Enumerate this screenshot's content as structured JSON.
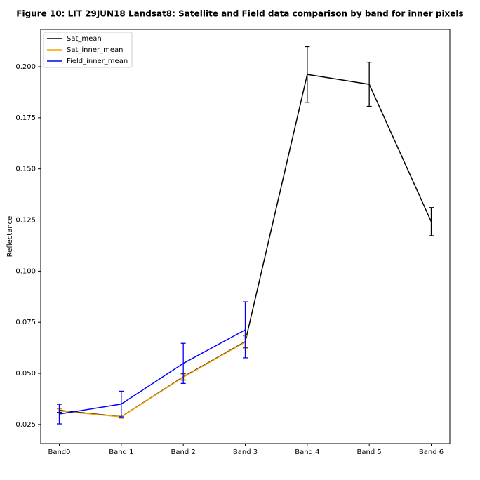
{
  "chart_data": {
    "type": "line",
    "title": "Figure 10: LIT 29JUN18  Landsat8: Satellite and Field data comparison by band for inner pixels",
    "ylabel": "Reflectance",
    "categories": [
      "Band0",
      "Band 1",
      "Band 2",
      "Band 3",
      "Band 4",
      "Band 5",
      "Band 6"
    ],
    "series": [
      {
        "name": "Sat_mean",
        "color": "#000000",
        "values": [
          0.0319,
          0.0288,
          0.0483,
          0.0655,
          0.1962,
          0.1914,
          0.1242
        ],
        "errors": [
          0.001,
          0.0007,
          0.0015,
          0.003,
          0.0136,
          0.0108,
          0.0069
        ]
      },
      {
        "name": "Sat_inner_mean",
        "color": "#f5a300",
        "values": [
          0.0316,
          0.0287,
          0.0481,
          0.0653,
          null,
          null,
          null
        ],
        "errors": [
          0.001,
          0.0007,
          0.0015,
          0.003,
          null,
          null,
          null
        ]
      },
      {
        "name": "Field_inner_mean",
        "color": "#0000ff",
        "values": [
          0.0301,
          0.035,
          0.0549,
          0.0713,
          null,
          null,
          null
        ],
        "errors": [
          0.0048,
          0.0063,
          0.0098,
          0.0137,
          null,
          null,
          null
        ]
      }
    ],
    "xlim": [
      -0.3,
      6.3
    ],
    "ylim": [
      0.0157,
      0.2182
    ],
    "yticks": [
      {
        "value": 0.025,
        "label": "0.025"
      },
      {
        "value": 0.05,
        "label": "0.050"
      },
      {
        "value": 0.075,
        "label": "0.075"
      },
      {
        "value": 0.1,
        "label": "0.100"
      },
      {
        "value": 0.125,
        "label": "0.125"
      },
      {
        "value": 0.15,
        "label": "0.150"
      },
      {
        "value": 0.175,
        "label": "0.175"
      },
      {
        "value": 0.2,
        "label": "0.200"
      }
    ],
    "legend": "upper left"
  }
}
